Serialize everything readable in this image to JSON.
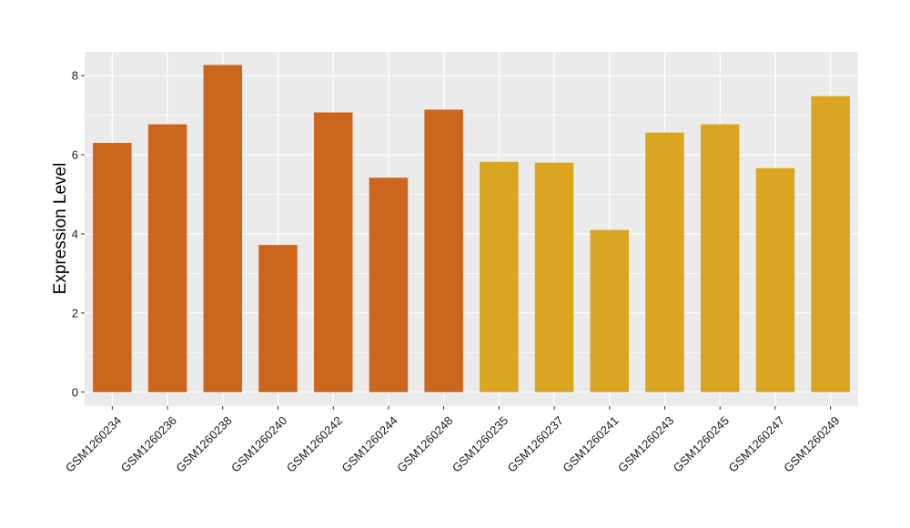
{
  "chart_data": {
    "type": "bar",
    "title": "",
    "xlabel": "",
    "ylabel": "Expression Level",
    "ylim": [
      -0.35,
      8.6
    ],
    "yticks": [
      0,
      2,
      4,
      6,
      8
    ],
    "grid": true,
    "categories": [
      "GSM1260234",
      "GSM1260236",
      "GSM1260238",
      "GSM1260240",
      "GSM1260242",
      "GSM1260244",
      "GSM1260248",
      "GSM1260235",
      "GSM1260237",
      "GSM1260241",
      "GSM1260243",
      "GSM1260245",
      "GSM1260247",
      "GSM1260249"
    ],
    "values": [
      6.3,
      6.77,
      8.27,
      3.72,
      7.07,
      5.42,
      7.14,
      5.82,
      5.8,
      4.1,
      6.56,
      6.77,
      5.66,
      7.48
    ],
    "groups": [
      0,
      0,
      0,
      0,
      0,
      0,
      0,
      1,
      1,
      1,
      1,
      1,
      1,
      1
    ],
    "colors": [
      "#CD661D",
      "#DAA520"
    ],
    "panel_background": "#EBEBEB",
    "grid_color": "#FFFFFF"
  }
}
